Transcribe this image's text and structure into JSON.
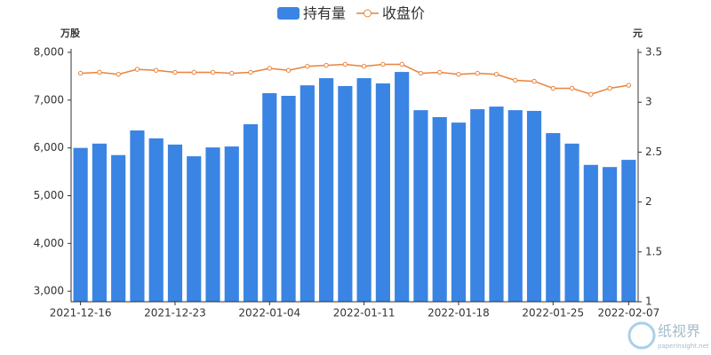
{
  "chart_data": {
    "type": "bar_line",
    "categories": [
      "2021-12-16",
      null,
      null,
      null,
      null,
      "2021-12-23",
      null,
      null,
      null,
      null,
      "2022-01-04",
      null,
      null,
      null,
      null,
      "2022-01-11",
      null,
      null,
      null,
      null,
      "2022-01-18",
      null,
      null,
      null,
      null,
      "2022-01-25",
      null,
      null,
      null,
      "2022-02-07"
    ],
    "series": [
      {
        "name": "持有量",
        "color": "#3a84e3",
        "kind": "bar",
        "axis": "y",
        "values": [
          6000,
          6090,
          5850,
          6365,
          6200,
          6070,
          5825,
          6010,
          6030,
          6495,
          7145,
          7090,
          7310,
          7460,
          7295,
          7460,
          7350,
          7590,
          6790,
          6645,
          6530,
          6810,
          6865,
          6790,
          6775,
          6310,
          6090,
          5645,
          5600,
          5750
        ]
      },
      {
        "name": "收盘价",
        "color": "#e8833a",
        "kind": "line",
        "axis": "y2",
        "values": [
          3.29,
          3.3,
          3.28,
          3.33,
          3.32,
          3.3,
          3.3,
          3.3,
          3.29,
          3.3,
          3.34,
          3.32,
          3.36,
          3.37,
          3.38,
          3.36,
          3.38,
          3.38,
          3.29,
          3.3,
          3.28,
          3.29,
          3.28,
          3.22,
          3.21,
          3.14,
          3.14,
          3.08,
          3.14,
          3.17
        ]
      }
    ],
    "y_label": "万股",
    "y2_label": "元",
    "ylim": [
      2780,
      8000
    ],
    "yticks": [
      {
        "value": 3000,
        "label": "3,000"
      },
      {
        "value": 4000,
        "label": "4,000"
      },
      {
        "value": 5000,
        "label": "5,000"
      },
      {
        "value": 6000,
        "label": "6,000"
      },
      {
        "value": 7000,
        "label": "7,000"
      },
      {
        "value": 8000,
        "label": "8,000"
      }
    ],
    "y2lim": [
      1,
      3.5
    ],
    "y2ticks": [
      1,
      1.5,
      2,
      2.5,
      3,
      3.5
    ],
    "legend": "top"
  },
  "watermark": {
    "title": "纸视界",
    "url": "paperinsight.net"
  }
}
